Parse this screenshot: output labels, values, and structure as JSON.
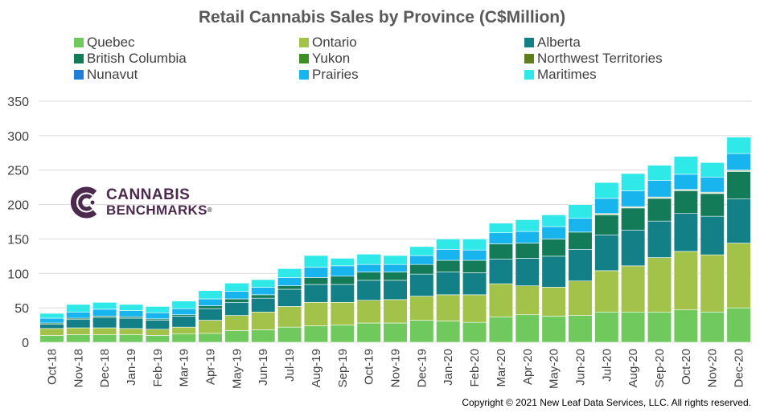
{
  "chart_data": {
    "type": "bar",
    "stacked": true,
    "title": "Retail Cannabis Sales by Province (C$Million)",
    "xlabel": "",
    "ylabel": "",
    "ylim": [
      0,
      350
    ],
    "yticks": [
      0,
      50,
      100,
      150,
      200,
      250,
      300,
      350
    ],
    "grid": true,
    "legend_position": "top",
    "categories": [
      "Oct-18",
      "Nov-18",
      "Dec-18",
      "Jan-19",
      "Feb-19",
      "Mar-19",
      "Apr-19",
      "May-19",
      "Jun-19",
      "Jul-19",
      "Aug-19",
      "Sep-19",
      "Oct-19",
      "Nov-19",
      "Dec-19",
      "Jan-20",
      "Feb-20",
      "Mar-20",
      "Apr-20",
      "May-20",
      "Jun-20",
      "Jul-20",
      "Aug-20",
      "Sep-20",
      "Oct-20",
      "Nov-20",
      "Dec-20"
    ],
    "series": [
      {
        "name": "Quebec",
        "color": "#70c95c",
        "values": [
          10,
          11,
          11,
          11,
          10,
          12,
          13,
          17,
          18,
          22,
          24,
          25,
          28,
          28,
          32,
          31,
          29,
          37,
          40,
          38,
          39,
          44,
          44,
          44,
          47,
          44,
          50
        ]
      },
      {
        "name": "Ontario",
        "color": "#a2c24a",
        "values": [
          10,
          10,
          10,
          9,
          9,
          10,
          19,
          22,
          26,
          30,
          34,
          33,
          33,
          34,
          35,
          38,
          40,
          48,
          42,
          42,
          50,
          60,
          67,
          79,
          85,
          83,
          94
        ]
      },
      {
        "name": "Alberta",
        "color": "#128086",
        "values": [
          6,
          12,
          15,
          15,
          13,
          16,
          17,
          19,
          20,
          25,
          26,
          26,
          29,
          28,
          32,
          33,
          32,
          36,
          40,
          45,
          46,
          52,
          52,
          53,
          55,
          56,
          64
        ]
      },
      {
        "name": "British Columbia",
        "color": "#147b58",
        "values": [
          2,
          2,
          2,
          2,
          2,
          2,
          4,
          5,
          5,
          5,
          10,
          12,
          12,
          12,
          14,
          17,
          18,
          22,
          22,
          25,
          25,
          29,
          32,
          33,
          33,
          33,
          40
        ]
      },
      {
        "name": "Yukon",
        "color": "#3f8f27",
        "values": [
          0,
          0,
          0,
          0,
          0,
          0,
          0,
          0,
          0,
          0,
          0,
          0,
          0,
          0,
          0,
          0,
          0,
          0,
          0,
          0,
          0,
          1,
          1,
          1,
          1,
          1,
          1
        ]
      },
      {
        "name": "Northwest Territories",
        "color": "#5f7d1f",
        "values": [
          0,
          0,
          0,
          0,
          0,
          0,
          0,
          0,
          0,
          0,
          0,
          0,
          0,
          0,
          0,
          0,
          0,
          0,
          0,
          0,
          0,
          1,
          1,
          1,
          1,
          1,
          1
        ]
      },
      {
        "name": "Nunavut",
        "color": "#1f7fd6",
        "values": [
          0,
          0,
          0,
          0,
          0,
          0,
          0,
          0,
          0,
          0,
          0,
          0,
          0,
          0,
          0,
          0,
          0,
          0,
          0,
          0,
          0,
          0,
          0,
          0,
          0,
          0,
          0
        ]
      },
      {
        "name": "Prairies",
        "color": "#17b4ee",
        "values": [
          7,
          9,
          10,
          9,
          9,
          9,
          10,
          11,
          11,
          12,
          15,
          15,
          11,
          11,
          13,
          16,
          15,
          16,
          17,
          18,
          20,
          22,
          23,
          24,
          22,
          22,
          24
        ]
      },
      {
        "name": "Maritimes",
        "color": "#2fe8e8",
        "values": [
          7,
          11,
          10,
          9,
          9,
          11,
          12,
          12,
          11,
          13,
          17,
          11,
          15,
          13,
          13,
          15,
          16,
          14,
          17,
          17,
          20,
          23,
          25,
          22,
          26,
          21,
          24
        ]
      }
    ]
  },
  "logo": {
    "line1": "CANNABIS",
    "line2": "BENCHMARKS",
    "mark": "®"
  },
  "copyright": "Copyright © 2021 New Leaf Data Services, LLC. All rights reserved.",
  "colors": {
    "gridline": "#d9d9d9",
    "axis_text": "#404040",
    "logo": "#4b2a4d"
  }
}
